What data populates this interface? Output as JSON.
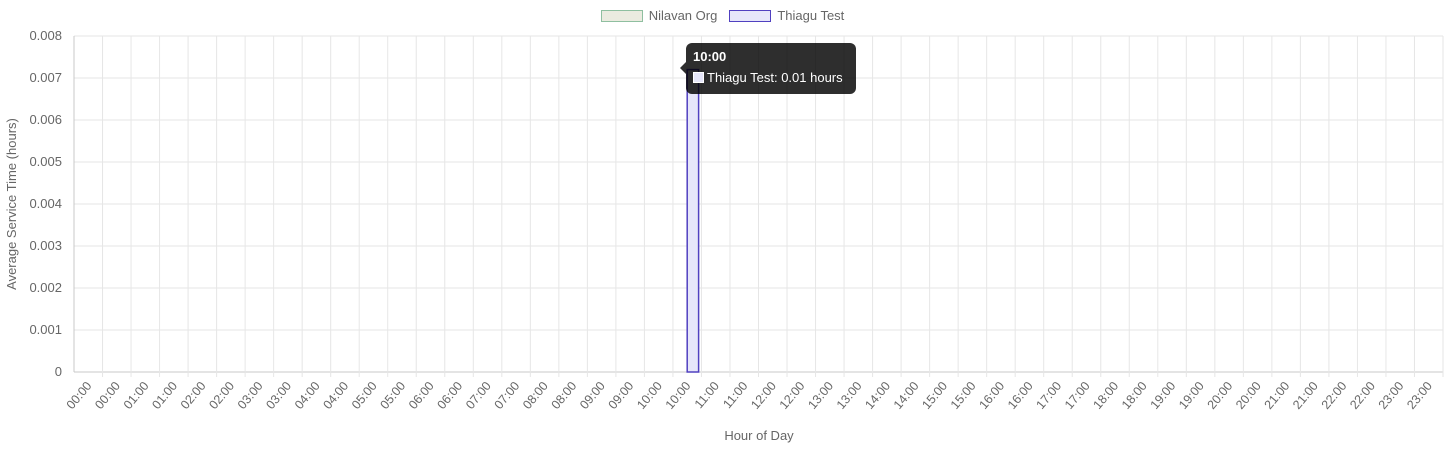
{
  "chart_data": {
    "type": "bar",
    "title": "",
    "xlabel": "Hour of Day",
    "ylabel": "Average Service Time (hours)",
    "ylim": [
      0,
      0.008
    ],
    "y_ticks": [
      "0",
      "0.001",
      "0.002",
      "0.003",
      "0.004",
      "0.005",
      "0.006",
      "0.007",
      "0.008"
    ],
    "grid": true,
    "legend_position": "top-center",
    "categories": [
      "00:00",
      "00:00",
      "01:00",
      "01:00",
      "02:00",
      "02:00",
      "03:00",
      "03:00",
      "04:00",
      "04:00",
      "05:00",
      "05:00",
      "06:00",
      "06:00",
      "07:00",
      "07:00",
      "08:00",
      "08:00",
      "09:00",
      "09:00",
      "10:00",
      "10:00",
      "11:00",
      "11:00",
      "12:00",
      "12:00",
      "13:00",
      "13:00",
      "14:00",
      "14:00",
      "15:00",
      "15:00",
      "16:00",
      "16:00",
      "17:00",
      "17:00",
      "18:00",
      "18:00",
      "19:00",
      "19:00",
      "20:00",
      "20:00",
      "21:00",
      "21:00",
      "22:00",
      "22:00",
      "23:00",
      "23:00"
    ],
    "series": [
      {
        "name": "Nilavan Org",
        "fill": "#ebebe0",
        "border": "#8fbfa0",
        "values": [
          0,
          0,
          0,
          0,
          0,
          0,
          0,
          0,
          0,
          0,
          0,
          0,
          0,
          0,
          0,
          0,
          0,
          0,
          0,
          0,
          0,
          0,
          0,
          0,
          0,
          0,
          0,
          0,
          0,
          0,
          0,
          0,
          0,
          0,
          0,
          0,
          0,
          0,
          0,
          0,
          0,
          0,
          0,
          0,
          0,
          0,
          0,
          0
        ]
      },
      {
        "name": "Thiagu Test",
        "fill": "#e6e6fa",
        "border": "#5040c0",
        "values": [
          0,
          0,
          0,
          0,
          0,
          0,
          0,
          0,
          0,
          0,
          0,
          0,
          0,
          0,
          0,
          0,
          0,
          0,
          0,
          0,
          0,
          0.0072,
          0,
          0,
          0,
          0,
          0,
          0,
          0,
          0,
          0,
          0,
          0,
          0,
          0,
          0,
          0,
          0,
          0,
          0,
          0,
          0,
          0,
          0,
          0,
          0,
          0,
          0
        ]
      }
    ]
  },
  "tooltip": {
    "title": "10:00",
    "label": "Thiagu Test: 0.01 hours"
  }
}
